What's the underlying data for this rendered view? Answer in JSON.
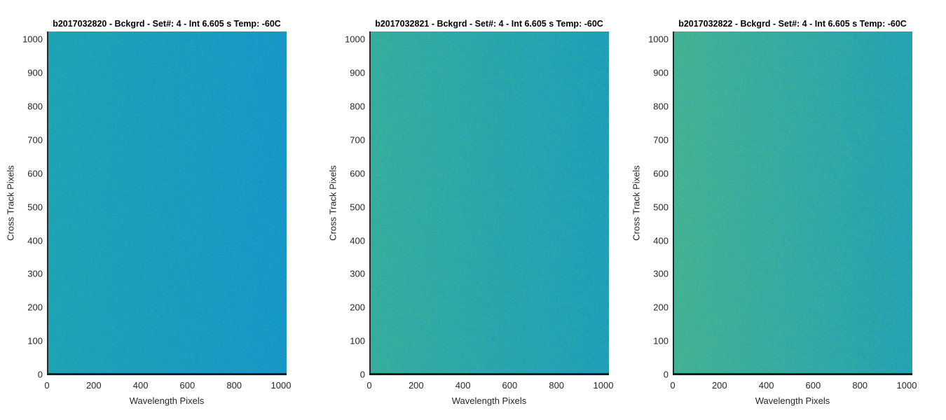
{
  "chart_data": [
    {
      "type": "heatmap",
      "title": "b2017032820 - Bckgrd - Set#: 4 - Int 6.605 s Temp: -60C",
      "xlabel": "Wavelength Pixels",
      "ylabel": "Cross Track Pixels",
      "xlim": [
        0,
        1024
      ],
      "ylim": [
        0,
        1024
      ],
      "xticks": [
        "0",
        "200",
        "400",
        "600",
        "800",
        "1000"
      ],
      "yticks": [
        "0",
        "100",
        "200",
        "300",
        "400",
        "500",
        "600",
        "700",
        "800",
        "900",
        "1000"
      ],
      "grid": false,
      "colors": {
        "left": "#1ea3b6",
        "right": "#1597c9",
        "noise": "#3bb09a"
      }
    },
    {
      "type": "heatmap",
      "title": "b2017032821 - Bckgrd - Set#: 4 - Int 6.605 s Temp: -60C",
      "xlabel": "Wavelength Pixels",
      "ylabel": "Cross Track Pixels",
      "xlim": [
        0,
        1024
      ],
      "ylim": [
        0,
        1024
      ],
      "xticks": [
        "0",
        "200",
        "400",
        "600",
        "800",
        "1000"
      ],
      "yticks": [
        "0",
        "100",
        "200",
        "300",
        "400",
        "500",
        "600",
        "700",
        "800",
        "900",
        "1000"
      ],
      "grid": false,
      "colors": {
        "left": "#35ad9f",
        "right": "#1d9fba",
        "noise": "#5cbb83"
      }
    },
    {
      "type": "heatmap",
      "title": "b2017032822 - Bckgrd - Set#: 4 - Int 6.605 s Temp: -60C",
      "xlabel": "Wavelength Pixels",
      "ylabel": "Cross Track Pixels",
      "xlim": [
        0,
        1024
      ],
      "ylim": [
        0,
        1024
      ],
      "xticks": [
        "0",
        "200",
        "400",
        "600",
        "800",
        "1000"
      ],
      "yticks": [
        "0",
        "100",
        "200",
        "300",
        "400",
        "500",
        "600",
        "700",
        "800",
        "900",
        "1000"
      ],
      "grid": false,
      "colors": {
        "left": "#42b295",
        "right": "#23a2b4",
        "noise": "#6cbf78"
      }
    }
  ]
}
